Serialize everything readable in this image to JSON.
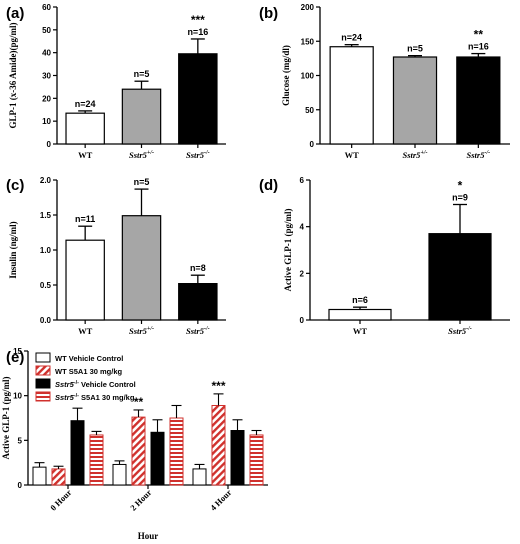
{
  "chart_data": [
    {
      "id": "a",
      "panel_label": "(a)",
      "type": "bar",
      "ylabel": "GLP-1 (x-36 Amide)(pg/ml)",
      "ylim": [
        0,
        60
      ],
      "yticks": [
        0,
        10,
        20,
        30,
        40,
        50,
        60
      ],
      "categories": [
        "WT",
        "Sstr5+/-",
        "Sstr5-/-"
      ],
      "category_labels": [
        {
          "base": "WT",
          "italic": false,
          "sup": ""
        },
        {
          "base": "Sstr5",
          "italic": true,
          "sup": "+/-"
        },
        {
          "base": "Sstr5",
          "italic": true,
          "sup": "-/-"
        }
      ],
      "values": [
        13.5,
        24,
        39.5
      ],
      "errors": [
        1,
        3.5,
        6.5
      ],
      "fills": [
        "white",
        "gray",
        "black"
      ],
      "n_labels": [
        "n=24",
        "n=5",
        "n=16"
      ],
      "significance": [
        "",
        "",
        "***"
      ]
    },
    {
      "id": "b",
      "panel_label": "(b)",
      "type": "bar",
      "ylabel": "Glucose (mg/dl)",
      "ylim": [
        0,
        200
      ],
      "yticks": [
        0,
        50,
        100,
        150,
        200
      ],
      "categories": [
        "WT",
        "Sstr5+/-",
        "Sstr5-/-"
      ],
      "category_labels": [
        {
          "base": "WT",
          "italic": false,
          "sup": ""
        },
        {
          "base": "Sstr5",
          "italic": true,
          "sup": "+/-"
        },
        {
          "base": "Sstr5",
          "italic": true,
          "sup": "-/-"
        }
      ],
      "values": [
        142,
        127,
        127
      ],
      "errors": [
        3,
        2,
        5
      ],
      "fills": [
        "white",
        "gray",
        "black"
      ],
      "n_labels": [
        "n=24",
        "n=5",
        "n=16"
      ],
      "significance": [
        "",
        "",
        "**"
      ]
    },
    {
      "id": "c",
      "panel_label": "(c)",
      "type": "bar",
      "ylabel": "Insulin (ng/ml)",
      "ylim": [
        0,
        2.0
      ],
      "yticks": [
        0.0,
        0.5,
        1.0,
        1.5,
        2.0
      ],
      "ytick_labels": [
        "0.0",
        "0.5",
        "1.0",
        "1.5",
        "2.0"
      ],
      "categories": [
        "WT",
        "Sstr5+/-",
        "Sstr5-/-"
      ],
      "category_labels": [
        {
          "base": "WT",
          "italic": false,
          "sup": ""
        },
        {
          "base": "Sstr5",
          "italic": true,
          "sup": "+/-"
        },
        {
          "base": "Sstr5",
          "italic": true,
          "sup": "-/-"
        }
      ],
      "values": [
        1.14,
        1.49,
        0.52
      ],
      "errors": [
        0.2,
        0.38,
        0.12
      ],
      "fills": [
        "white",
        "gray",
        "black"
      ],
      "n_labels": [
        "n=11",
        "n=5",
        "n=8"
      ],
      "significance": [
        "",
        "",
        ""
      ]
    },
    {
      "id": "d",
      "panel_label": "(d)",
      "type": "bar",
      "ylabel": "Active GLP-1 (pg/ml)",
      "ylim": [
        0,
        6
      ],
      "yticks": [
        0,
        2,
        4,
        6
      ],
      "categories": [
        "WT",
        "Sstr5-/-"
      ],
      "category_labels": [
        {
          "base": "WT",
          "italic": false,
          "sup": ""
        },
        {
          "base": "Sstr5",
          "italic": true,
          "sup": "-/-"
        }
      ],
      "values": [
        0.45,
        3.7
      ],
      "errors": [
        0.1,
        1.25
      ],
      "fills": [
        "white",
        "black"
      ],
      "n_labels": [
        "n=6",
        "n=9"
      ],
      "significance": [
        "",
        "*"
      ]
    },
    {
      "id": "e",
      "panel_label": "(e)",
      "type": "bar",
      "ylabel": "Active GLP-1 (pg/ml)",
      "xlabel": "Hour",
      "ylim": [
        0,
        15
      ],
      "yticks": [
        0,
        5,
        10,
        15
      ],
      "categories": [
        "0 Hour",
        "2 Hour",
        "4 Hour"
      ],
      "series": [
        {
          "name": "WT Vehicle Control",
          "legend": {
            "base": "WT Vehicle Control",
            "sup": ""
          },
          "fill": "white",
          "values": [
            2.0,
            2.3,
            1.8
          ],
          "errors": [
            0.5,
            0.4,
            0.5
          ]
        },
        {
          "name": "WT S5A1 30 mg/kg",
          "legend": {
            "base": "WT S5A1 30 mg/kg",
            "sup": ""
          },
          "fill": "red-hatch",
          "values": [
            1.8,
            7.6,
            8.9
          ],
          "errors": [
            0.3,
            0.8,
            1.3
          ]
        },
        {
          "name": "Sstr5-/- Vehicle Control",
          "legend": {
            "base": "Sstr5",
            "sup": "-/-",
            "rest": " Vehicle Control"
          },
          "fill": "black",
          "values": [
            7.2,
            5.9,
            6.1
          ],
          "errors": [
            1.4,
            1.4,
            1.2
          ]
        },
        {
          "name": "Sstr5-/- S5A1 30 mg/kg",
          "legend": {
            "base": "Sstr5",
            "sup": "-/-",
            "rest": " S5A1 30 mg/kg"
          },
          "fill": "red-hline",
          "values": [
            5.6,
            7.5,
            5.6
          ],
          "errors": [
            0.4,
            1.4,
            0.5
          ]
        }
      ],
      "significance": [
        {
          "category": "2 Hour",
          "series": 1,
          "text": "**"
        },
        {
          "category": "4 Hour",
          "series": 1,
          "text": "***"
        }
      ],
      "legend_position": "top-left"
    }
  ],
  "colors": {
    "gray_fill": "#a6a6a6",
    "black_fill": "#000000",
    "red": "#d0312d",
    "axis": "#000000"
  }
}
